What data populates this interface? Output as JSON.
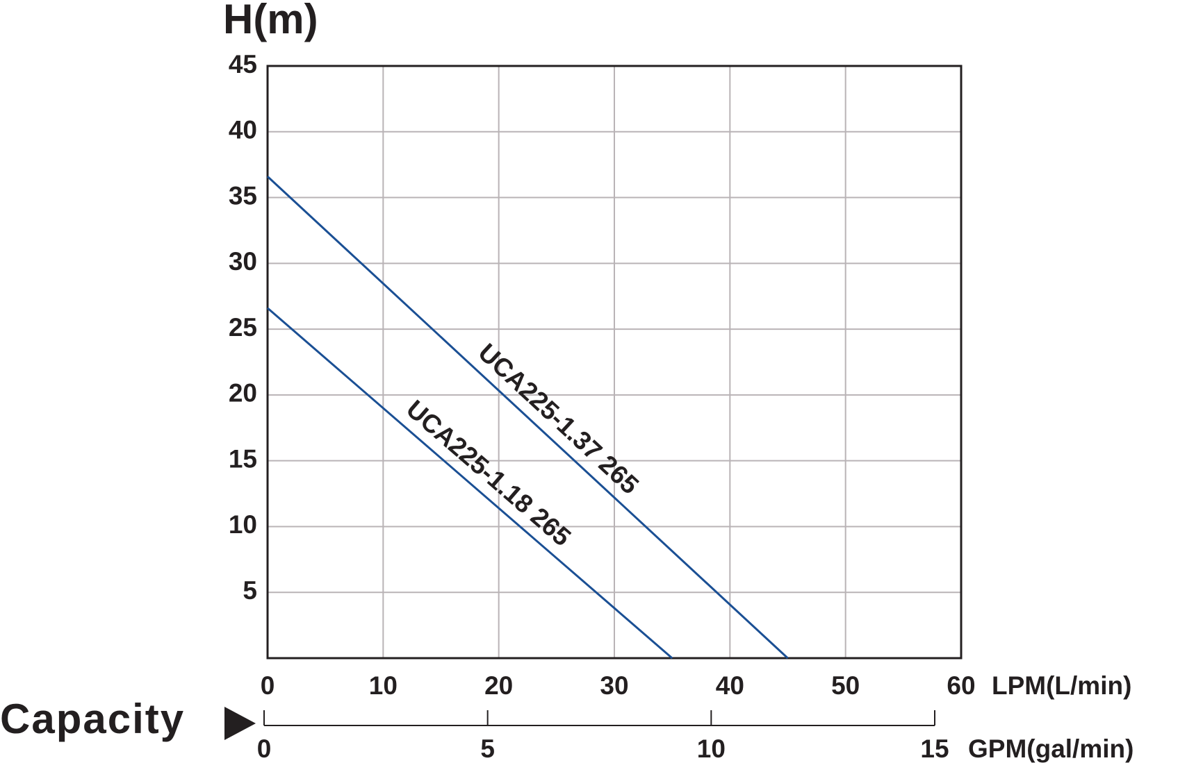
{
  "chart_data": {
    "type": "line",
    "title": "H(m)",
    "xlabel": "LPM(L/min)",
    "capacity_label": "Capacity",
    "x": [
      0,
      45
    ],
    "series": [
      {
        "name": "UCA225-1.37 265",
        "color": "#1a4f94",
        "x": [
          0,
          45
        ],
        "values": [
          36.6,
          0
        ]
      },
      {
        "name": "UCA225-1.18 265",
        "color": "#1a4f94",
        "x": [
          0,
          35
        ],
        "values": [
          26.6,
          0
        ]
      }
    ],
    "xlim": [
      0,
      60
    ],
    "xticks": [
      0,
      10,
      20,
      30,
      40,
      50,
      60
    ],
    "ylim": [
      0,
      45
    ],
    "yticks": [
      5,
      10,
      15,
      20,
      25,
      30,
      35,
      40,
      45
    ],
    "x2label": "GPM(gal/min)",
    "x2lim": [
      0,
      15
    ],
    "x2ticks": [
      0,
      5,
      10,
      15
    ],
    "grid": true
  }
}
